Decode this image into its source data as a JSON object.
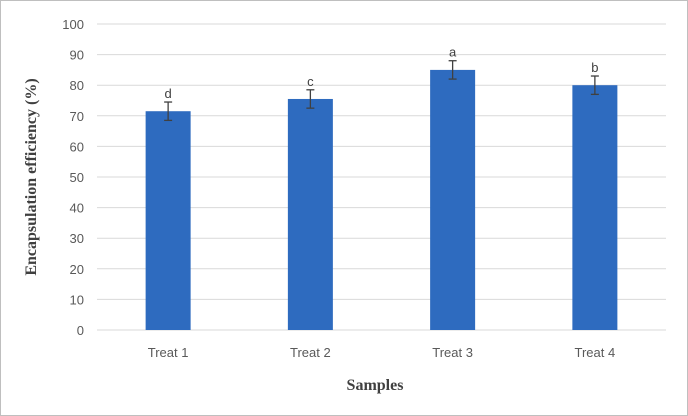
{
  "chart_data": {
    "type": "bar",
    "title": "",
    "xlabel": "Samples",
    "ylabel": "Encapsulation efficiency (%)",
    "categories": [
      "Treat 1",
      "Treat 2",
      "Treat 3",
      "Treat 4"
    ],
    "values": [
      71.5,
      75.5,
      85,
      80
    ],
    "errors": [
      3,
      3,
      3,
      3
    ],
    "significance_letters": [
      "d",
      "c",
      "a",
      "b"
    ],
    "ylim": [
      0,
      100
    ],
    "yticks": [
      "0",
      "10",
      "20",
      "30",
      "40",
      "50",
      "60",
      "70",
      "80",
      "90",
      "100"
    ],
    "grid": true,
    "legend": "none",
    "bar_color": "#2e6bbf",
    "grid_color": "#d9d9d9",
    "error_color": "#404040"
  }
}
